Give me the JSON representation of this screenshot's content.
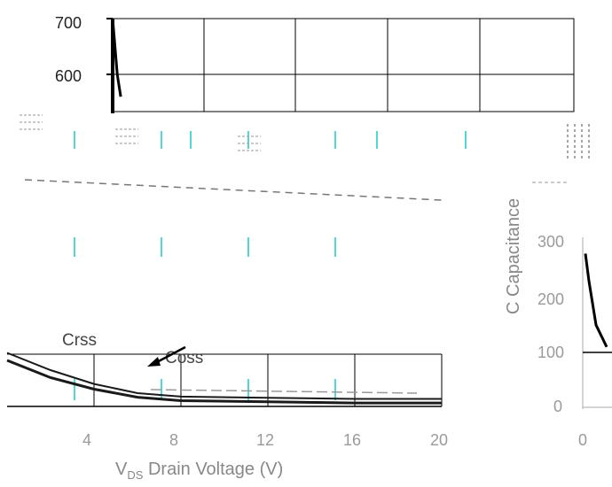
{
  "chart_data": [
    {
      "type": "line",
      "panel": "top-fragment",
      "yticks": [
        "700",
        "600"
      ],
      "xlim": [
        0,
        20
      ],
      "ylim": [
        550,
        700
      ],
      "grid": true,
      "series": [
        {
          "x": [
            0.0,
            0.2,
            0.35
          ],
          "y": [
            700,
            600,
            560
          ]
        }
      ]
    },
    {
      "type": "line",
      "panel": "main",
      "xlabel": "V",
      "xlabel_sub": "DS",
      "xlabel_rest": " Drain Voltage (V)",
      "xticks": [
        4,
        8,
        12,
        16,
        20
      ],
      "xtick_labels": [
        "4",
        "8",
        "12",
        "16",
        "20"
      ],
      "xlim": [
        0,
        20
      ],
      "grid": true,
      "annotations": [
        {
          "text": "Crss"
        },
        {
          "text": "Coss"
        }
      ],
      "series": [
        {
          "name": "Crss",
          "x": [
            0,
            2,
            4,
            6,
            8,
            12,
            16,
            20
          ],
          "y": [
            40,
            25,
            15,
            8,
            5,
            4,
            3,
            3
          ]
        },
        {
          "name": "Coss",
          "x": [
            0,
            2,
            4,
            6,
            8,
            12,
            16,
            20
          ],
          "y": [
            45,
            30,
            18,
            10,
            7,
            6,
            5,
            5
          ]
        }
      ]
    },
    {
      "type": "line",
      "panel": "right-fragment",
      "ylabel": "C Capacitance",
      "yticks": [
        "300",
        "200",
        "100",
        "0"
      ],
      "xtick_labels": [
        "0"
      ],
      "ylim": [
        0,
        350
      ],
      "series": [
        {
          "x": [
            0.0,
            0.1,
            0.3,
            0.6
          ],
          "y": [
            280,
            230,
            150,
            110
          ]
        }
      ]
    }
  ],
  "colors": {
    "axis": "#000000",
    "grid": "#000000",
    "cyan_grid": "#18c8c8",
    "curve": "#1a1a1a",
    "arrow": "#000000"
  }
}
